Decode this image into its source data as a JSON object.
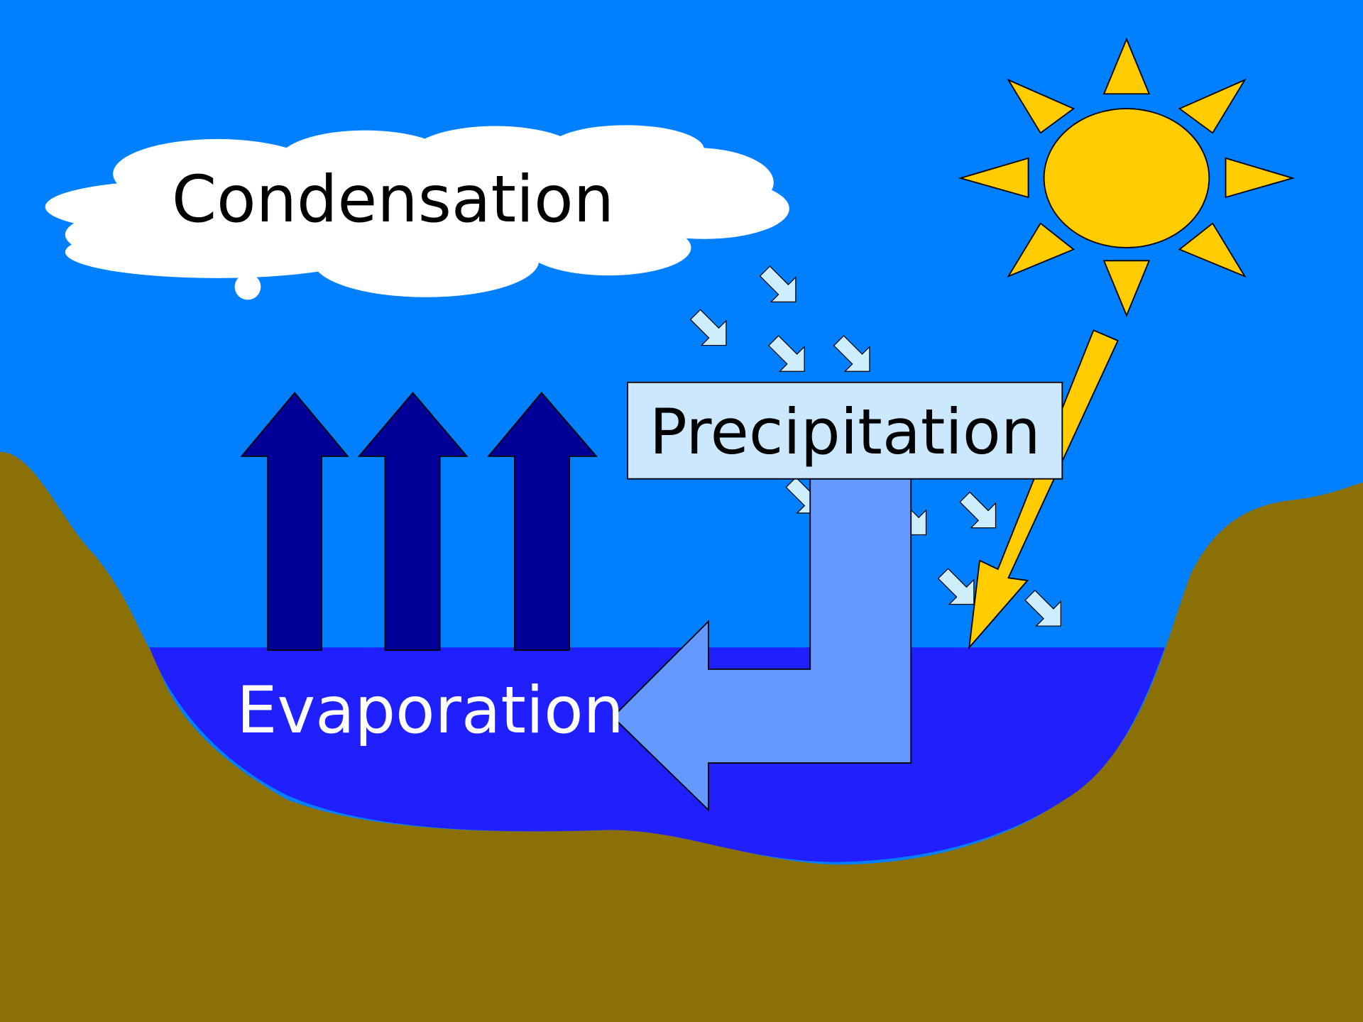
{
  "nodes": [
    {
      "label": "Condensation"
    },
    {
      "label": "Precipitation"
    },
    {
      "label": "Evaporation"
    }
  ]
}
